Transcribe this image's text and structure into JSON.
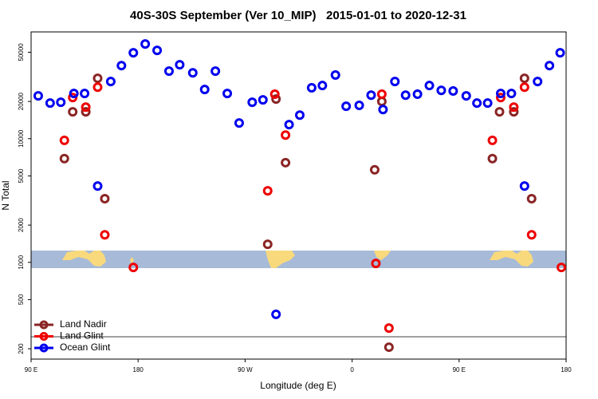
{
  "chart_data": {
    "type": "scatter",
    "title": "40S-30S September (Ver 10_MIP)   2015-01-01 to 2020-12-31",
    "x_label": "Longitude (deg E)",
    "y_label": "N Total",
    "log_y": true,
    "grid": false,
    "legend": "bottom left",
    "xlim": [
      90,
      540
    ],
    "xticks": [
      {
        "value": 90,
        "label": "90 E"
      },
      180,
      {
        "value": 270,
        "label": "90 W"
      },
      {
        "value": 360,
        "label": "0"
      },
      {
        "value": 450,
        "label": "90 E"
      },
      {
        "value": 540,
        "label": "180"
      }
    ],
    "ylim": [
      165,
      73000
    ],
    "yticks": [
      200,
      500,
      1000,
      2000,
      5000,
      10000,
      20000,
      50000
    ],
    "series": [
      {
        "name": "Land Nadir",
        "color": "#8b2525",
        "x": [
          118,
          125,
          136,
          146,
          152,
          289,
          296,
          304,
          379,
          385,
          391,
          478,
          484,
          496,
          505,
          511
        ],
        "values": [
          6900,
          16500,
          16500,
          30800,
          3270,
          1400,
          20900,
          6400,
          5600,
          20000,
          206,
          6900,
          16500,
          16500,
          30800,
          3270
        ]
      },
      {
        "name": "Land Glint",
        "color": "#ee0000",
        "x": [
          118,
          125,
          136,
          146,
          152,
          176,
          289,
          295,
          304,
          380,
          385,
          391,
          478,
          485,
          496,
          505,
          511,
          536
        ],
        "values": [
          9700,
          21500,
          18000,
          26100,
          1670,
          910,
          3790,
          22900,
          10700,
          980,
          22900,
          294,
          9700,
          21500,
          18000,
          26100,
          1670,
          910
        ]
      },
      {
        "name": "Ocean Glint",
        "color": "#0000ee",
        "x": [
          96,
          106,
          115,
          126,
          135,
          146,
          157,
          166,
          176,
          186,
          196,
          206,
          215,
          226,
          236,
          245,
          255,
          265,
          276,
          285,
          296,
          307,
          316,
          326,
          335,
          346,
          355,
          366,
          376,
          386,
          396,
          405,
          415,
          425,
          435,
          445,
          456,
          465,
          474,
          485,
          494,
          505,
          516,
          526,
          535
        ],
        "values": [
          22200,
          19400,
          19700,
          23200,
          23200,
          4140,
          29000,
          39000,
          49500,
          58300,
          51800,
          35200,
          39600,
          34100,
          25000,
          35200,
          23200,
          13400,
          19700,
          20600,
          380,
          13000,
          15500,
          25800,
          26900,
          32700,
          18300,
          18600,
          22500,
          17200,
          29000,
          22500,
          22900,
          26900,
          24600,
          24300,
          22200,
          19400,
          19400,
          23200,
          23200,
          4140,
          29000,
          39000,
          49500
        ]
      }
    ]
  }
}
